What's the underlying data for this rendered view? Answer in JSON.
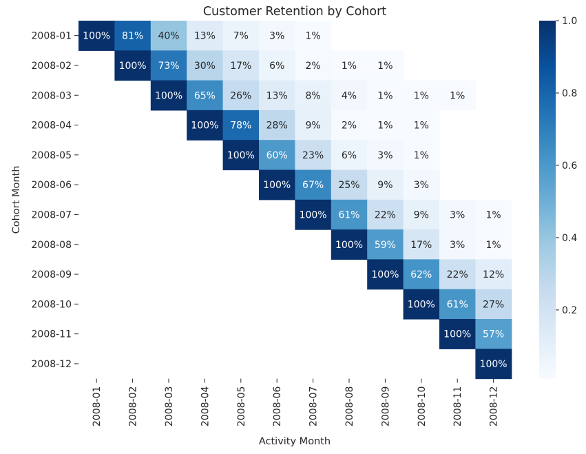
{
  "chart_data": {
    "type": "heatmap",
    "title": "Customer Retention by Cohort",
    "xlabel": "Activity Month",
    "ylabel": "Cohort Month",
    "rows": [
      "2008-01",
      "2008-02",
      "2008-03",
      "2008-04",
      "2008-05",
      "2008-06",
      "2008-07",
      "2008-08",
      "2008-09",
      "2008-10",
      "2008-11",
      "2008-12"
    ],
    "columns": [
      "2008-01",
      "2008-02",
      "2008-03",
      "2008-04",
      "2008-05",
      "2008-06",
      "2008-07",
      "2008-08",
      "2008-09",
      "2008-10",
      "2008-11",
      "2008-12"
    ],
    "values": [
      [
        1.0,
        0.81,
        0.4,
        0.13,
        0.07,
        0.03,
        0.01,
        null,
        null,
        null,
        null,
        null
      ],
      [
        null,
        1.0,
        0.73,
        0.3,
        0.17,
        0.06,
        0.02,
        0.01,
        0.01,
        null,
        null,
        null
      ],
      [
        null,
        null,
        1.0,
        0.65,
        0.26,
        0.13,
        0.08,
        0.04,
        0.01,
        0.01,
        0.01,
        null
      ],
      [
        null,
        null,
        null,
        1.0,
        0.78,
        0.28,
        0.09,
        0.02,
        0.01,
        0.01,
        null,
        null
      ],
      [
        null,
        null,
        null,
        null,
        1.0,
        0.6,
        0.23,
        0.06,
        0.03,
        0.01,
        null,
        null
      ],
      [
        null,
        null,
        null,
        null,
        null,
        1.0,
        0.67,
        0.25,
        0.09,
        0.03,
        null,
        null
      ],
      [
        null,
        null,
        null,
        null,
        null,
        null,
        1.0,
        0.61,
        0.22,
        0.09,
        0.03,
        0.01
      ],
      [
        null,
        null,
        null,
        null,
        null,
        null,
        null,
        1.0,
        0.59,
        0.17,
        0.03,
        0.01
      ],
      [
        null,
        null,
        null,
        null,
        null,
        null,
        null,
        null,
        1.0,
        0.62,
        0.22,
        0.12
      ],
      [
        null,
        null,
        null,
        null,
        null,
        null,
        null,
        null,
        null,
        1.0,
        0.61,
        0.27
      ],
      [
        null,
        null,
        null,
        null,
        null,
        null,
        null,
        null,
        null,
        null,
        1.0,
        0.57
      ],
      [
        null,
        null,
        null,
        null,
        null,
        null,
        null,
        null,
        null,
        null,
        null,
        1.0
      ]
    ],
    "value_format": "percent",
    "colormap": "Blues",
    "colorbar": {
      "range": [
        0.0,
        1.0
      ],
      "ticks": [
        0.2,
        0.4,
        0.6,
        0.8,
        1.0
      ]
    },
    "colors": {
      "low": "#f7fbff",
      "high": "#08306b",
      "dark_text": "#262626",
      "light_text": "#ffffff"
    }
  }
}
